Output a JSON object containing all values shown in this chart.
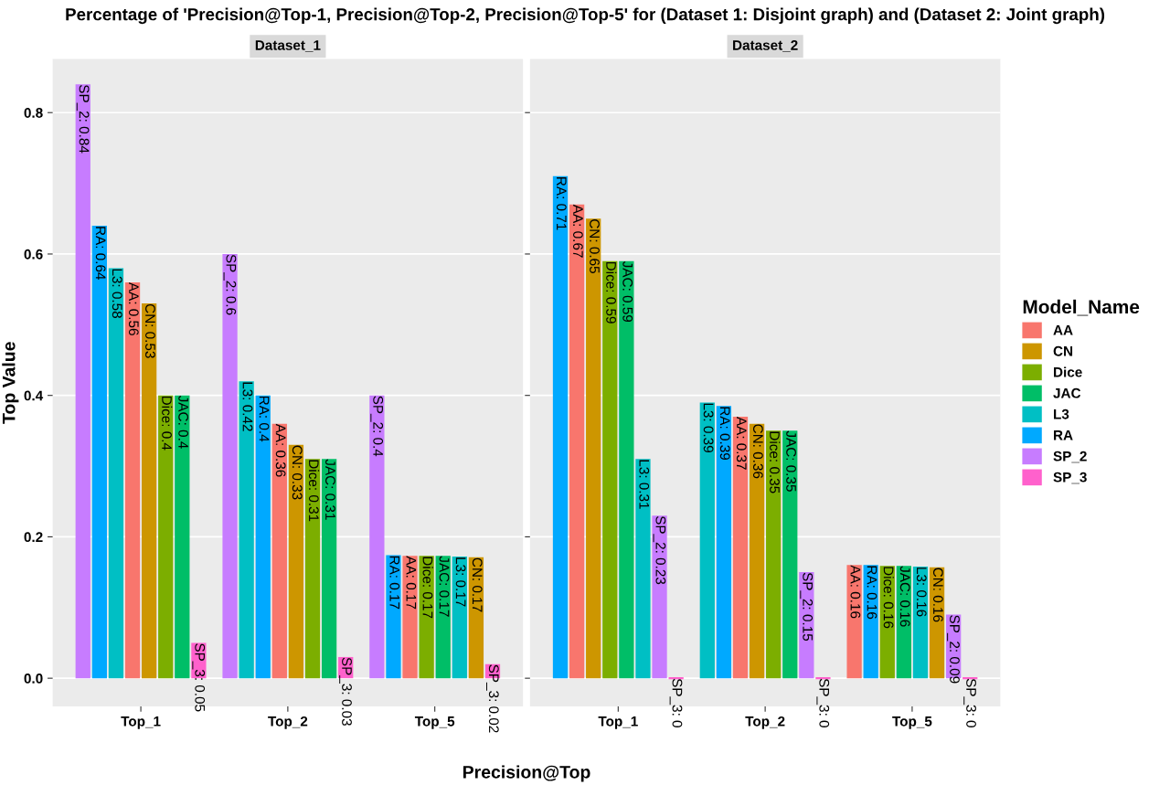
{
  "chart_data": [
    {
      "type": "bar",
      "title": "Percentage of 'Precision@Top-1, Precision@Top-2, Precision@Top-5' for (Dataset 1: Disjoint graph) and (Dataset 2: Joint graph)",
      "subtitle": "Dataset_1",
      "xlabel": "Precision@Top",
      "ylabel": "Top Value",
      "categories": [
        "Top_1",
        "Top_2",
        "Top_5"
      ],
      "ylim": [
        -0.04,
        0.876
      ],
      "yticks": [
        {
          "value": 0,
          "label": "0.0"
        },
        {
          "value": 0.2,
          "label": "0.2"
        },
        {
          "value": 0.4,
          "label": "0.4"
        },
        {
          "value": 0.6,
          "label": "0.6"
        },
        {
          "value": 0.8,
          "label": "0.8"
        }
      ],
      "grid": true,
      "legend": "right",
      "legend_title": "Model_Name",
      "series": [
        {
          "name": "AA",
          "color": "#f8766d",
          "values": [
            0.56,
            0.36,
            0.173
          ],
          "value_labels": [
            "AA: 0.56",
            "AA: 0.36",
            "AA: 0.17"
          ]
        },
        {
          "name": "CN",
          "color": "#cd9600",
          "values": [
            0.53,
            0.33,
            0.171
          ],
          "value_labels": [
            "CN: 0.53",
            "CN: 0.33",
            "CN: 0.17"
          ]
        },
        {
          "name": "Dice",
          "color": "#7cae00",
          "values": [
            0.4,
            0.31,
            0.173
          ],
          "value_labels": [
            "Dice: 0.4",
            "Dice: 0.31",
            "Dice: 0.17"
          ]
        },
        {
          "name": "JAC",
          "color": "#00be67",
          "values": [
            0.4,
            0.31,
            0.173
          ],
          "value_labels": [
            "JAC: 0.4",
            "JAC: 0.31",
            "JAC: 0.17"
          ]
        },
        {
          "name": "L3",
          "color": "#00bfc4",
          "values": [
            0.58,
            0.42,
            0.172
          ],
          "value_labels": [
            "L3: 0.58",
            "L3: 0.42",
            "L3: 0.17"
          ]
        },
        {
          "name": "RA",
          "color": "#00a9ff",
          "values": [
            0.64,
            0.4,
            0.174
          ],
          "value_labels": [
            "RA: 0.64",
            "RA: 0.4",
            "RA: 0.17"
          ]
        },
        {
          "name": "SP_2",
          "color": "#c77cff",
          "values": [
            0.84,
            0.6,
            0.4
          ],
          "value_labels": [
            "SP_2: 0.84",
            "SP_2: 0.6",
            "SP_2: 0.4"
          ]
        },
        {
          "name": "SP_3",
          "color": "#ff61cc",
          "values": [
            0.05,
            0.03,
            0.02
          ],
          "value_labels": [
            "SP_3: 0.05",
            "SP_3: 0.03",
            "SP_3: 0.02"
          ]
        }
      ]
    },
    {
      "type": "bar",
      "subtitle": "Dataset_2",
      "categories": [
        "Top_1",
        "Top_2",
        "Top_5"
      ],
      "ylim": [
        -0.04,
        0.876
      ],
      "tick_labels": "x",
      "grid": true,
      "series": [
        {
          "color": "#f8766d",
          "values": [
            0.67,
            0.37,
            0.16
          ],
          "value_labels": [
            "AA: 0.67",
            "AA: 0.37",
            "AA: 0.16"
          ]
        },
        {
          "color": "#cd9600",
          "values": [
            0.65,
            0.36,
            0.157
          ],
          "value_labels": [
            "CN: 0.65",
            "CN: 0.36",
            "CN: 0.16"
          ]
        },
        {
          "color": "#7cae00",
          "values": [
            0.59,
            0.35,
            0.159
          ],
          "value_labels": [
            "Dice: 0.59",
            "Dice: 0.35",
            "Dice: 0.16"
          ]
        },
        {
          "color": "#00be67",
          "values": [
            0.59,
            0.35,
            0.159
          ],
          "value_labels": [
            "JAC: 0.59",
            "JAC: 0.35",
            "JAC: 0.16"
          ]
        },
        {
          "color": "#00bfc4",
          "values": [
            0.31,
            0.39,
            0.158
          ],
          "value_labels": [
            "L3: 0.31",
            "L3: 0.39",
            "L3: 0.16"
          ]
        },
        {
          "color": "#00a9ff",
          "values": [
            0.71,
            0.385,
            0.16
          ],
          "value_labels": [
            "RA: 0.71",
            "RA: 0.39",
            "RA: 0.16"
          ]
        },
        {
          "color": "#c77cff",
          "values": [
            0.23,
            0.15,
            0.09
          ],
          "value_labels": [
            "SP_2: 0.23",
            "SP_2: 0.15",
            "SP_2: 0.09"
          ]
        },
        {
          "color": "#ff61cc",
          "values": [
            0,
            0,
            0
          ],
          "value_labels": [
            "SP_3: 0",
            "SP_3: 0",
            "SP_3: 0"
          ]
        }
      ]
    }
  ]
}
